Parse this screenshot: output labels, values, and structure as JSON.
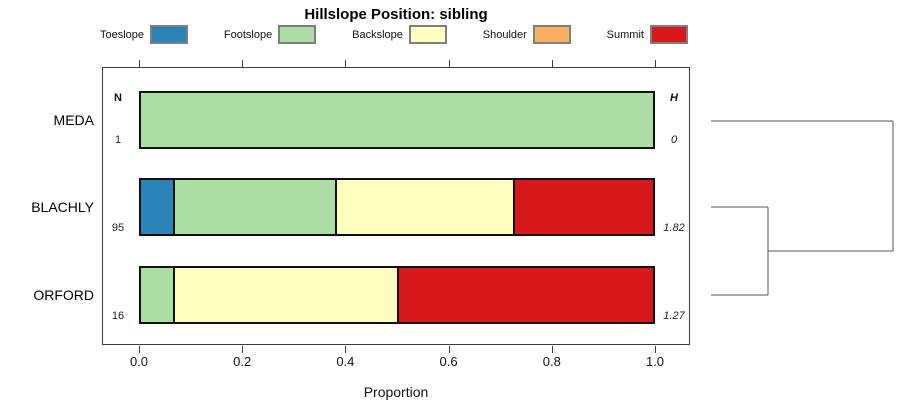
{
  "title": "Hillslope Position: sibling",
  "legend": {
    "items": [
      {
        "label": "Toeslope",
        "color": "#2B83BA"
      },
      {
        "label": "Footslope",
        "color": "#ABDDA4"
      },
      {
        "label": "Backslope",
        "color": "#FFFFBF"
      },
      {
        "label": "Shoulder",
        "color": "#FDAE61"
      },
      {
        "label": "Summit",
        "color": "#D7191C"
      }
    ]
  },
  "chart_data": {
    "type": "bar",
    "subtype": "horizontal_stacked_proportion",
    "title": "Hillslope Position: sibling",
    "xlabel": "Proportion",
    "xlim": [
      0,
      1
    ],
    "x_ticks": [
      0.0,
      0.2,
      0.4,
      0.6,
      0.8,
      1.0
    ],
    "x_tick_labels": [
      "0.0",
      "0.2",
      "0.4",
      "0.6",
      "0.8",
      "1.0"
    ],
    "classes": [
      "Toeslope",
      "Footslope",
      "Backslope",
      "Shoulder",
      "Summit"
    ],
    "colors": {
      "Toeslope": "#2B83BA",
      "Footslope": "#ABDDA4",
      "Backslope": "#FFFFBF",
      "Shoulder": "#FDAE61",
      "Summit": "#D7191C"
    },
    "columns": {
      "n_header": "N",
      "h_header": "H"
    },
    "rows": [
      {
        "label": "MEDA",
        "n": "1",
        "h": "0",
        "segments": [
          {
            "class": "Footslope",
            "value": 1.0
          }
        ]
      },
      {
        "label": "BLACHLY",
        "n": "95",
        "h": "1.82",
        "segments": [
          {
            "class": "Toeslope",
            "value": 0.063
          },
          {
            "class": "Footslope",
            "value": 0.316
          },
          {
            "class": "Backslope",
            "value": 0.347
          },
          {
            "class": "Summit",
            "value": 0.274
          }
        ]
      },
      {
        "label": "ORFORD",
        "n": "16",
        "h": "1.27",
        "segments": [
          {
            "class": "Footslope",
            "value": 0.0625
          },
          {
            "class": "Backslope",
            "value": 0.4375
          },
          {
            "class": "Summit",
            "value": 0.5
          }
        ]
      }
    ],
    "dendrogram": {
      "leaves": [
        "MEDA",
        "BLACHLY",
        "ORFORD"
      ],
      "merges": [
        {
          "members": [
            "BLACHLY",
            "ORFORD"
          ],
          "relative_height": 0.31
        },
        {
          "members": [
            "MEDA",
            "BLACHLY+ORFORD"
          ],
          "relative_height": 1.0
        }
      ],
      "legend_position": "top",
      "grid": false
    }
  }
}
